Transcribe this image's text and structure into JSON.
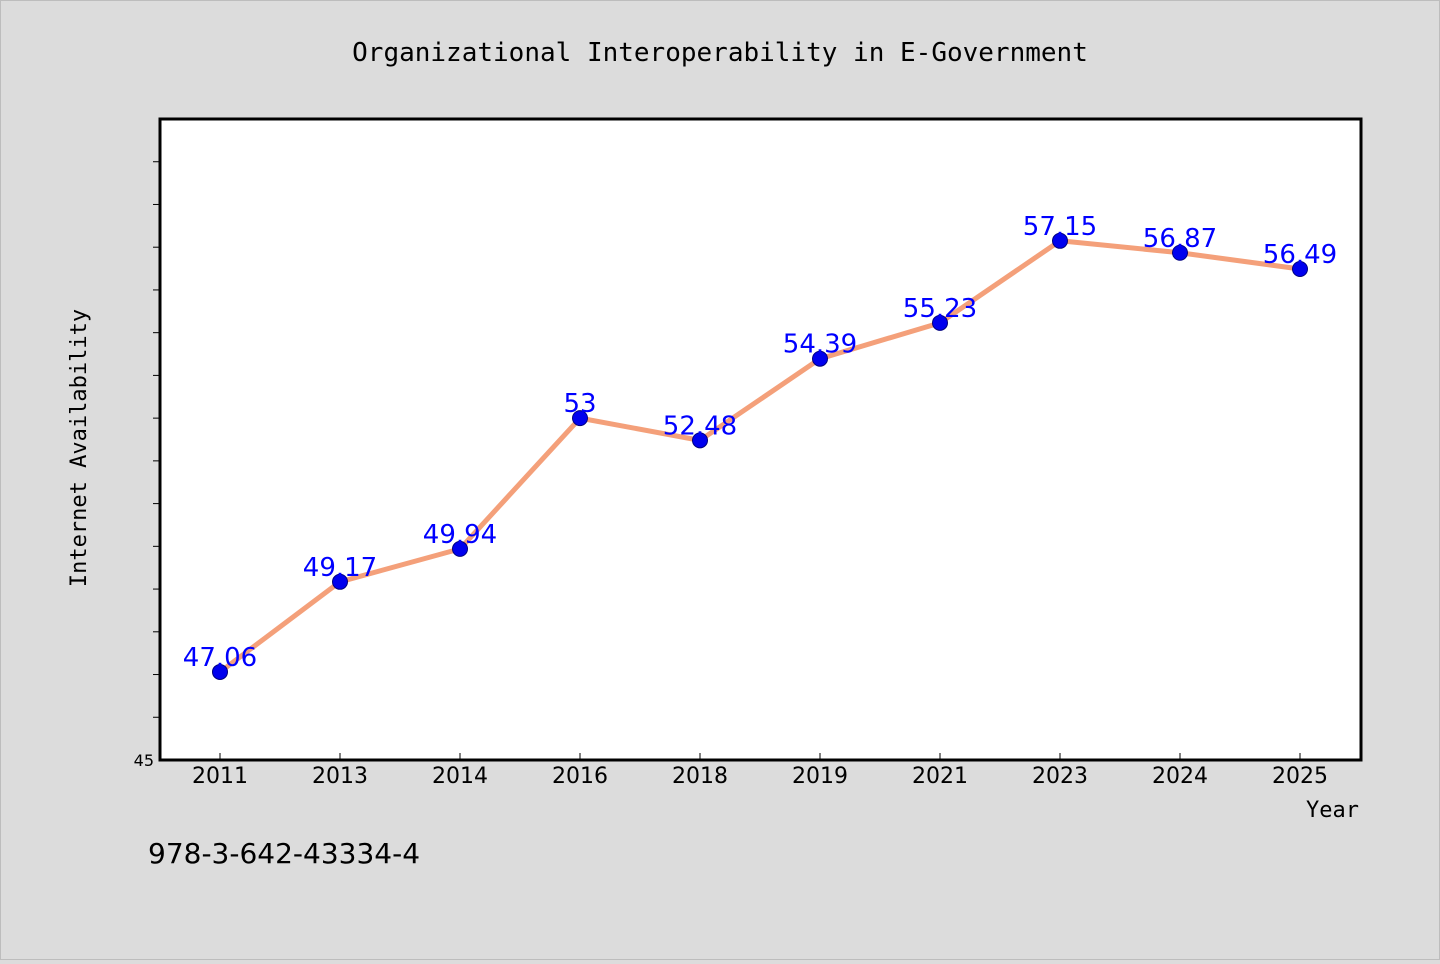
{
  "chart_data": {
    "type": "line",
    "title": "Organizational Interoperability in E-Government",
    "xlabel": "Year",
    "ylabel": "Internet Availability",
    "categories": [
      "2011",
      "2013",
      "2014",
      "2016",
      "2018",
      "2019",
      "2021",
      "2023",
      "2024",
      "2025"
    ],
    "series": [
      {
        "values": [
          47.06,
          49.17,
          49.94,
          53,
          52.48,
          54.39,
          55.23,
          57.15,
          56.87,
          56.49
        ],
        "data_labels": [
          "47.06",
          "49.17",
          "49.94",
          "53",
          "52.48",
          "54.39",
          "55.23",
          "57.15",
          "56.87",
          "56.49"
        ]
      }
    ],
    "ylim": [
      45,
      60
    ],
    "ytick_labels": [
      "45"
    ],
    "grid": false,
    "legend": "none",
    "colors": {
      "line": "#f4a07a",
      "marker": "#0000ee",
      "data_label": "#0000ff",
      "background": "#dcdcdc",
      "plot_background": "#ffffff"
    }
  },
  "footer": {
    "isbn": "978-3-642-43334-4"
  }
}
